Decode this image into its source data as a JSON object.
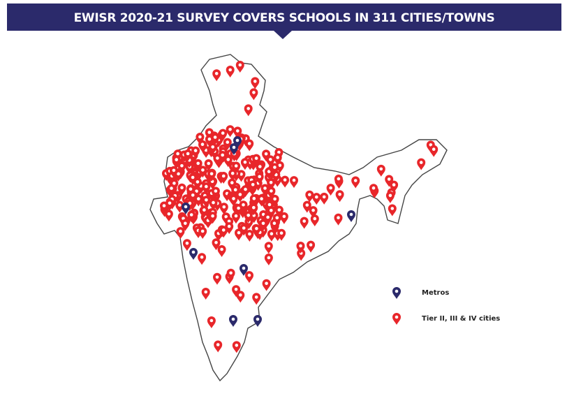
{
  "title": "EWISR 2020-21 SURVEY COVERS SCHOOLS IN 311 CITIES/TOWNS",
  "legend": {
    "items": [
      {
        "label": "Metros"
      },
      {
        "label": "Tier II, III & IV cities"
      }
    ]
  }
}
